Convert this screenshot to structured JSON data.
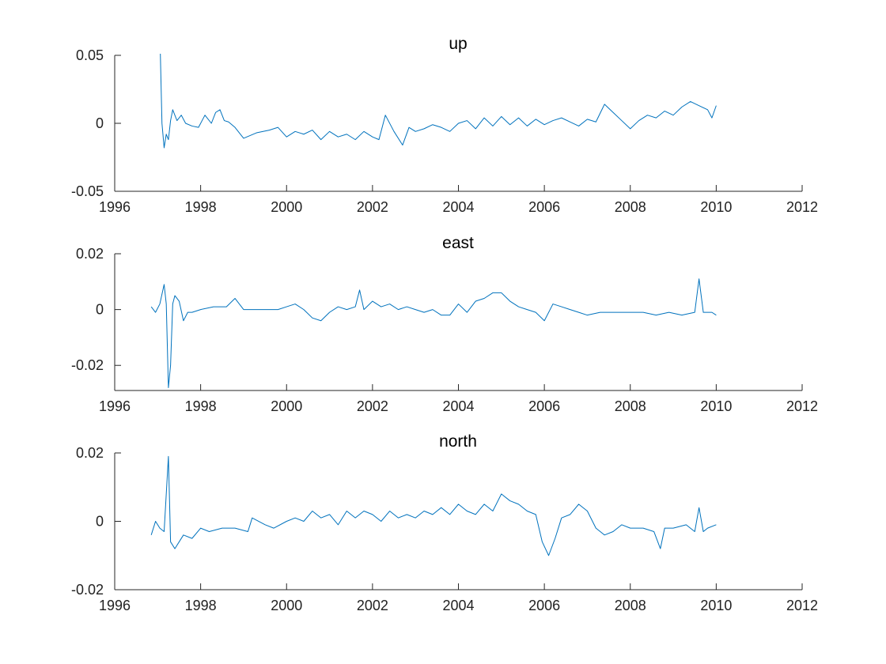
{
  "figure": {
    "background": "#ffffff",
    "line_color": "#0072bd"
  },
  "chart_data": [
    {
      "type": "line",
      "title": "up",
      "xlabel": "",
      "ylabel": "",
      "xlim": [
        1996,
        2012
      ],
      "ylim": [
        -0.05,
        0.05
      ],
      "x_ticks": [
        1996,
        1998,
        2000,
        2002,
        2004,
        2006,
        2008,
        2010,
        2012
      ],
      "x_tick_labels": [
        "1996",
        "1998",
        "2000",
        "2002",
        "2004",
        "2006",
        "2008",
        "2010",
        "2012"
      ],
      "y_ticks": [
        -0.05,
        0,
        0.05
      ],
      "y_tick_labels": [
        "-0.05",
        "0",
        "0.05"
      ],
      "grid": false,
      "series": [
        {
          "x": [
            1996.85,
            1996.95,
            1997.05,
            1997.1,
            1997.15,
            1997.2,
            1997.25,
            1997.3,
            1997.35,
            1997.45,
            1997.55,
            1997.65,
            1997.8,
            1997.95,
            1998.1,
            1998.25,
            1998.35,
            1998.45,
            1998.55,
            1998.65,
            1998.8,
            1999.0,
            1999.3,
            1999.6,
            1999.8,
            2000.0,
            2000.2,
            2000.4,
            2000.6,
            2000.8,
            2001.0,
            2001.2,
            2001.4,
            2001.6,
            2001.8,
            2002.0,
            2002.15,
            2002.3,
            2002.5,
            2002.7,
            2002.85,
            2003.0,
            2003.2,
            2003.4,
            2003.6,
            2003.8,
            2004.0,
            2004.2,
            2004.4,
            2004.6,
            2004.8,
            2005.0,
            2005.2,
            2005.4,
            2005.6,
            2005.8,
            2006.0,
            2006.2,
            2006.4,
            2006.6,
            2006.8,
            2007.0,
            2007.2,
            2007.4,
            2007.6,
            2007.8,
            2008.0,
            2008.2,
            2008.4,
            2008.6,
            2008.8,
            2009.0,
            2009.2,
            2009.4,
            2009.6,
            2009.8,
            2009.9,
            2010.0
          ],
          "y": [
            0.064,
            0.066,
            0.068,
            0.0,
            -0.018,
            -0.008,
            -0.012,
            0.002,
            0.01,
            0.002,
            0.006,
            0.0,
            -0.002,
            -0.003,
            0.006,
            0.0,
            0.008,
            0.01,
            0.002,
            0.001,
            -0.003,
            -0.011,
            -0.007,
            -0.005,
            -0.003,
            -0.01,
            -0.006,
            -0.008,
            -0.005,
            -0.012,
            -0.006,
            -0.01,
            -0.008,
            -0.012,
            -0.006,
            -0.01,
            -0.012,
            0.006,
            -0.006,
            -0.016,
            -0.003,
            -0.006,
            -0.004,
            -0.001,
            -0.003,
            -0.006,
            0.0,
            0.002,
            -0.004,
            0.004,
            -0.002,
            0.005,
            -0.001,
            0.004,
            -0.002,
            0.003,
            -0.001,
            0.002,
            0.004,
            0.001,
            -0.002,
            0.003,
            0.001,
            0.014,
            0.008,
            0.002,
            -0.004,
            0.002,
            0.006,
            0.004,
            0.009,
            0.006,
            0.012,
            0.016,
            0.013,
            0.01,
            0.004,
            0.013
          ]
        }
      ]
    },
    {
      "type": "line",
      "title": "east",
      "xlabel": "",
      "ylabel": "",
      "xlim": [
        1996,
        2012
      ],
      "ylim": [
        -0.029,
        0.02
      ],
      "x_ticks": [
        1996,
        1998,
        2000,
        2002,
        2004,
        2006,
        2008,
        2010,
        2012
      ],
      "x_tick_labels": [
        "1996",
        "1998",
        "2000",
        "2002",
        "2004",
        "2006",
        "2008",
        "2010",
        "2012"
      ],
      "y_ticks": [
        -0.02,
        0,
        0.02
      ],
      "y_tick_labels": [
        "-0.02",
        "0",
        "0.02"
      ],
      "grid": false,
      "series": [
        {
          "x": [
            1996.85,
            1996.95,
            1997.05,
            1997.15,
            1997.2,
            1997.25,
            1997.3,
            1997.35,
            1997.4,
            1997.5,
            1997.6,
            1997.7,
            1997.8,
            1998.0,
            1998.3,
            1998.6,
            1998.8,
            1999.0,
            1999.2,
            1999.5,
            1999.8,
            2000.0,
            2000.2,
            2000.4,
            2000.6,
            2000.8,
            2001.0,
            2001.2,
            2001.4,
            2001.6,
            2001.7,
            2001.8,
            2002.0,
            2002.2,
            2002.4,
            2002.6,
            2002.8,
            2003.0,
            2003.2,
            2003.4,
            2003.6,
            2003.8,
            2004.0,
            2004.2,
            2004.4,
            2004.6,
            2004.8,
            2005.0,
            2005.2,
            2005.4,
            2005.6,
            2005.8,
            2006.0,
            2006.2,
            2006.4,
            2006.6,
            2006.8,
            2007.0,
            2007.3,
            2007.6,
            2008.0,
            2008.3,
            2008.6,
            2008.9,
            2009.2,
            2009.5,
            2009.6,
            2009.7,
            2009.9,
            2010.0
          ],
          "y": [
            0.001,
            -0.001,
            0.002,
            0.009,
            0.002,
            -0.028,
            -0.02,
            0.002,
            0.005,
            0.003,
            -0.004,
            -0.001,
            -0.001,
            0.0,
            0.001,
            0.001,
            0.004,
            0.0,
            0.0,
            0.0,
            0.0,
            0.001,
            0.002,
            0.0,
            -0.003,
            -0.004,
            -0.001,
            0.001,
            0.0,
            0.001,
            0.007,
            0.0,
            0.003,
            0.001,
            0.002,
            0.0,
            0.001,
            0.0,
            -0.001,
            0.0,
            -0.002,
            -0.002,
            0.002,
            -0.001,
            0.003,
            0.004,
            0.006,
            0.006,
            0.003,
            0.001,
            0.0,
            -0.001,
            -0.004,
            0.002,
            0.001,
            0.0,
            -0.001,
            -0.002,
            -0.001,
            -0.001,
            -0.001,
            -0.001,
            -0.002,
            -0.001,
            -0.002,
            -0.001,
            0.011,
            -0.001,
            -0.001,
            -0.002
          ]
        }
      ]
    },
    {
      "type": "line",
      "title": "north",
      "xlabel": "",
      "ylabel": "",
      "xlim": [
        1996,
        2012
      ],
      "ylim": [
        -0.02,
        0.02
      ],
      "x_ticks": [
        1996,
        1998,
        2000,
        2002,
        2004,
        2006,
        2008,
        2010,
        2012
      ],
      "x_tick_labels": [
        "1996",
        "1998",
        "2000",
        "2002",
        "2004",
        "2006",
        "2008",
        "2010",
        "2012"
      ],
      "y_ticks": [
        -0.02,
        0,
        0.02
      ],
      "y_tick_labels": [
        "-0.02",
        "0",
        "0.02"
      ],
      "grid": false,
      "series": [
        {
          "x": [
            1996.85,
            1996.95,
            1997.05,
            1997.15,
            1997.25,
            1997.3,
            1997.4,
            1997.5,
            1997.6,
            1997.8,
            1998.0,
            1998.2,
            1998.5,
            1998.8,
            1999.1,
            1999.2,
            1999.5,
            1999.7,
            2000.0,
            2000.2,
            2000.4,
            2000.6,
            2000.8,
            2001.0,
            2001.2,
            2001.4,
            2001.6,
            2001.8,
            2002.0,
            2002.2,
            2002.4,
            2002.6,
            2002.8,
            2003.0,
            2003.2,
            2003.4,
            2003.6,
            2003.8,
            2004.0,
            2004.2,
            2004.4,
            2004.6,
            2004.8,
            2005.0,
            2005.2,
            2005.4,
            2005.6,
            2005.8,
            2005.95,
            2006.1,
            2006.25,
            2006.4,
            2006.6,
            2006.8,
            2007.0,
            2007.2,
            2007.4,
            2007.6,
            2007.8,
            2008.0,
            2008.3,
            2008.55,
            2008.7,
            2008.8,
            2009.0,
            2009.3,
            2009.5,
            2009.6,
            2009.7,
            2009.8,
            2010.0
          ],
          "y": [
            -0.004,
            0.0,
            -0.002,
            -0.003,
            0.019,
            -0.006,
            -0.008,
            -0.006,
            -0.004,
            -0.005,
            -0.002,
            -0.003,
            -0.002,
            -0.002,
            -0.003,
            0.001,
            -0.001,
            -0.002,
            0.0,
            0.001,
            0.0,
            0.003,
            0.001,
            0.002,
            -0.001,
            0.003,
            0.001,
            0.003,
            0.002,
            0.0,
            0.003,
            0.001,
            0.002,
            0.001,
            0.003,
            0.002,
            0.004,
            0.002,
            0.005,
            0.003,
            0.002,
            0.005,
            0.003,
            0.008,
            0.006,
            0.005,
            0.003,
            0.002,
            -0.006,
            -0.01,
            -0.005,
            0.001,
            0.002,
            0.005,
            0.003,
            -0.002,
            -0.004,
            -0.003,
            -0.001,
            -0.002,
            -0.002,
            -0.003,
            -0.008,
            -0.002,
            -0.002,
            -0.001,
            -0.003,
            0.004,
            -0.003,
            -0.002,
            -0.001
          ]
        }
      ]
    }
  ]
}
